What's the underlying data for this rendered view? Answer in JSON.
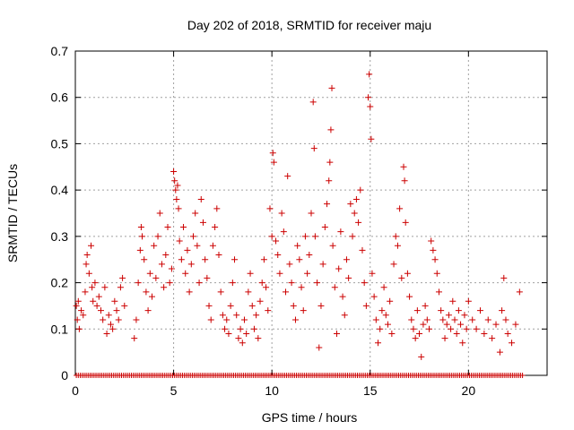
{
  "chart_data": {
    "type": "scatter",
    "title": "Day 202 of 2018, SRMTID for receiver maju",
    "xlabel": "GPS time / hours",
    "ylabel": "SRMTID / TECUs",
    "xlim": [
      0,
      24
    ],
    "ylim": [
      0,
      0.7
    ],
    "x_ticks": [
      0,
      5,
      10,
      15,
      20
    ],
    "x_tick_labels": [
      "0",
      "5",
      "10",
      "15",
      "20"
    ],
    "y_ticks": [
      0,
      0.1,
      0.2,
      0.3,
      0.4,
      0.5,
      0.6,
      0.7
    ],
    "y_tick_labels": [
      "0",
      "0.1",
      "0.2",
      "0.3",
      "0.4",
      "0.5",
      "0.6",
      "0.7"
    ],
    "grid": true,
    "marker": "+",
    "color": "#cc0000",
    "series": [
      {
        "name": "SRMTID",
        "points": [
          [
            0.05,
            0.15
          ],
          [
            0.1,
            0.12
          ],
          [
            0.15,
            0.16
          ],
          [
            0.2,
            0.1
          ],
          [
            0.3,
            0.14
          ],
          [
            0.4,
            0.13
          ],
          [
            0.5,
            0.18
          ],
          [
            0.55,
            0.24
          ],
          [
            0.6,
            0.26
          ],
          [
            0.7,
            0.22
          ],
          [
            0.8,
            0.28
          ],
          [
            0.85,
            0.19
          ],
          [
            0.9,
            0.16
          ],
          [
            1.0,
            0.2
          ],
          [
            1.1,
            0.15
          ],
          [
            1.2,
            0.17
          ],
          [
            1.3,
            0.14
          ],
          [
            1.4,
            0.12
          ],
          [
            1.5,
            0.19
          ],
          [
            1.6,
            0.09
          ],
          [
            1.7,
            0.13
          ],
          [
            1.8,
            0.11
          ],
          [
            1.9,
            0.1
          ],
          [
            2.0,
            0.16
          ],
          [
            2.1,
            0.14
          ],
          [
            2.2,
            0.12
          ],
          [
            2.3,
            0.19
          ],
          [
            2.4,
            0.21
          ],
          [
            2.5,
            0.15
          ],
          [
            3.0,
            0.08
          ],
          [
            3.1,
            0.12
          ],
          [
            3.2,
            0.2
          ],
          [
            3.3,
            0.27
          ],
          [
            3.35,
            0.32
          ],
          [
            3.4,
            0.3
          ],
          [
            3.5,
            0.25
          ],
          [
            3.6,
            0.18
          ],
          [
            3.7,
            0.14
          ],
          [
            3.8,
            0.22
          ],
          [
            3.9,
            0.17
          ],
          [
            4.0,
            0.28
          ],
          [
            4.1,
            0.21
          ],
          [
            4.2,
            0.3
          ],
          [
            4.3,
            0.35
          ],
          [
            4.4,
            0.24
          ],
          [
            4.5,
            0.19
          ],
          [
            4.6,
            0.26
          ],
          [
            4.7,
            0.32
          ],
          [
            4.8,
            0.2
          ],
          [
            4.9,
            0.23
          ],
          [
            5.0,
            0.44
          ],
          [
            5.05,
            0.42
          ],
          [
            5.1,
            0.4
          ],
          [
            5.15,
            0.38
          ],
          [
            5.2,
            0.41
          ],
          [
            5.25,
            0.36
          ],
          [
            5.3,
            0.29
          ],
          [
            5.4,
            0.25
          ],
          [
            5.5,
            0.32
          ],
          [
            5.6,
            0.22
          ],
          [
            5.7,
            0.27
          ],
          [
            5.8,
            0.18
          ],
          [
            5.9,
            0.24
          ],
          [
            6.0,
            0.3
          ],
          [
            6.1,
            0.35
          ],
          [
            6.2,
            0.28
          ],
          [
            6.3,
            0.2
          ],
          [
            6.4,
            0.38
          ],
          [
            6.5,
            0.33
          ],
          [
            6.6,
            0.25
          ],
          [
            6.7,
            0.21
          ],
          [
            6.8,
            0.15
          ],
          [
            6.9,
            0.12
          ],
          [
            7.0,
            0.28
          ],
          [
            7.1,
            0.32
          ],
          [
            7.2,
            0.36
          ],
          [
            7.3,
            0.26
          ],
          [
            7.4,
            0.18
          ],
          [
            7.5,
            0.13
          ],
          [
            7.6,
            0.1
          ],
          [
            7.7,
            0.12
          ],
          [
            7.8,
            0.09
          ],
          [
            7.9,
            0.15
          ],
          [
            8.0,
            0.2
          ],
          [
            8.1,
            0.25
          ],
          [
            8.2,
            0.13
          ],
          [
            8.3,
            0.08
          ],
          [
            8.4,
            0.1
          ],
          [
            8.5,
            0.07
          ],
          [
            8.6,
            0.12
          ],
          [
            8.7,
            0.09
          ],
          [
            8.8,
            0.18
          ],
          [
            8.9,
            0.22
          ],
          [
            9.0,
            0.15
          ],
          [
            9.1,
            0.1
          ],
          [
            9.2,
            0.13
          ],
          [
            9.3,
            0.08
          ],
          [
            9.4,
            0.16
          ],
          [
            9.5,
            0.2
          ],
          [
            9.6,
            0.25
          ],
          [
            9.7,
            0.19
          ],
          [
            9.8,
            0.14
          ],
          [
            9.9,
            0.36
          ],
          [
            10.0,
            0.3
          ],
          [
            10.05,
            0.48
          ],
          [
            10.1,
            0.46
          ],
          [
            10.2,
            0.29
          ],
          [
            10.3,
            0.26
          ],
          [
            10.4,
            0.22
          ],
          [
            10.5,
            0.35
          ],
          [
            10.6,
            0.31
          ],
          [
            10.7,
            0.18
          ],
          [
            10.8,
            0.43
          ],
          [
            10.9,
            0.24
          ],
          [
            11.0,
            0.2
          ],
          [
            11.1,
            0.15
          ],
          [
            11.2,
            0.12
          ],
          [
            11.3,
            0.28
          ],
          [
            11.4,
            0.25
          ],
          [
            11.5,
            0.19
          ],
          [
            11.6,
            0.14
          ],
          [
            11.7,
            0.3
          ],
          [
            11.8,
            0.22
          ],
          [
            11.9,
            0.26
          ],
          [
            12.0,
            0.35
          ],
          [
            12.1,
            0.59
          ],
          [
            12.15,
            0.49
          ],
          [
            12.2,
            0.3
          ],
          [
            12.3,
            0.2
          ],
          [
            12.4,
            0.06
          ],
          [
            12.5,
            0.15
          ],
          [
            12.6,
            0.24
          ],
          [
            12.7,
            0.32
          ],
          [
            12.8,
            0.37
          ],
          [
            12.9,
            0.42
          ],
          [
            12.95,
            0.46
          ],
          [
            13.0,
            0.53
          ],
          [
            13.05,
            0.62
          ],
          [
            13.1,
            0.28
          ],
          [
            13.2,
            0.19
          ],
          [
            13.3,
            0.09
          ],
          [
            13.4,
            0.23
          ],
          [
            13.5,
            0.31
          ],
          [
            13.6,
            0.17
          ],
          [
            13.7,
            0.13
          ],
          [
            13.8,
            0.25
          ],
          [
            13.9,
            0.21
          ],
          [
            14.0,
            0.37
          ],
          [
            14.1,
            0.3
          ],
          [
            14.2,
            0.35
          ],
          [
            14.3,
            0.38
          ],
          [
            14.4,
            0.33
          ],
          [
            14.5,
            0.4
          ],
          [
            14.6,
            0.27
          ],
          [
            14.7,
            0.2
          ],
          [
            14.8,
            0.15
          ],
          [
            14.9,
            0.6
          ],
          [
            14.95,
            0.65
          ],
          [
            15.0,
            0.58
          ],
          [
            15.05,
            0.51
          ],
          [
            15.1,
            0.22
          ],
          [
            15.2,
            0.17
          ],
          [
            15.3,
            0.12
          ],
          [
            15.4,
            0.07
          ],
          [
            15.5,
            0.1
          ],
          [
            15.6,
            0.14
          ],
          [
            15.7,
            0.19
          ],
          [
            15.8,
            0.13
          ],
          [
            15.9,
            0.11
          ],
          [
            16.0,
            0.16
          ],
          [
            16.1,
            0.09
          ],
          [
            16.2,
            0.24
          ],
          [
            16.3,
            0.3
          ],
          [
            16.4,
            0.28
          ],
          [
            16.5,
            0.36
          ],
          [
            16.6,
            0.21
          ],
          [
            16.7,
            0.45
          ],
          [
            16.75,
            0.42
          ],
          [
            16.8,
            0.33
          ],
          [
            16.9,
            0.22
          ],
          [
            17.0,
            0.17
          ],
          [
            17.1,
            0.12
          ],
          [
            17.2,
            0.1
          ],
          [
            17.3,
            0.08
          ],
          [
            17.4,
            0.14
          ],
          [
            17.5,
            0.09
          ],
          [
            17.6,
            0.04
          ],
          [
            17.7,
            0.11
          ],
          [
            17.8,
            0.15
          ],
          [
            17.9,
            0.12
          ],
          [
            18.0,
            0.1
          ],
          [
            18.1,
            0.29
          ],
          [
            18.2,
            0.27
          ],
          [
            18.3,
            0.25
          ],
          [
            18.4,
            0.22
          ],
          [
            18.5,
            0.18
          ],
          [
            18.6,
            0.14
          ],
          [
            18.7,
            0.12
          ],
          [
            18.8,
            0.08
          ],
          [
            18.9,
            0.11
          ],
          [
            19.0,
            0.13
          ],
          [
            19.1,
            0.1
          ],
          [
            19.2,
            0.16
          ],
          [
            19.3,
            0.12
          ],
          [
            19.4,
            0.09
          ],
          [
            19.5,
            0.14
          ],
          [
            19.6,
            0.11
          ],
          [
            19.7,
            0.07
          ],
          [
            19.8,
            0.13
          ],
          [
            19.9,
            0.1
          ],
          [
            20.0,
            0.16
          ],
          [
            20.2,
            0.12
          ],
          [
            20.4,
            0.1
          ],
          [
            20.6,
            0.14
          ],
          [
            20.8,
            0.09
          ],
          [
            21.0,
            0.12
          ],
          [
            21.2,
            0.08
          ],
          [
            21.4,
            0.11
          ],
          [
            21.6,
            0.05
          ],
          [
            21.7,
            0.14
          ],
          [
            21.8,
            0.21
          ],
          [
            21.9,
            0.12
          ],
          [
            22.0,
            0.09
          ],
          [
            22.2,
            0.07
          ],
          [
            22.4,
            0.11
          ],
          [
            22.6,
            0.18
          ]
        ]
      }
    ]
  }
}
